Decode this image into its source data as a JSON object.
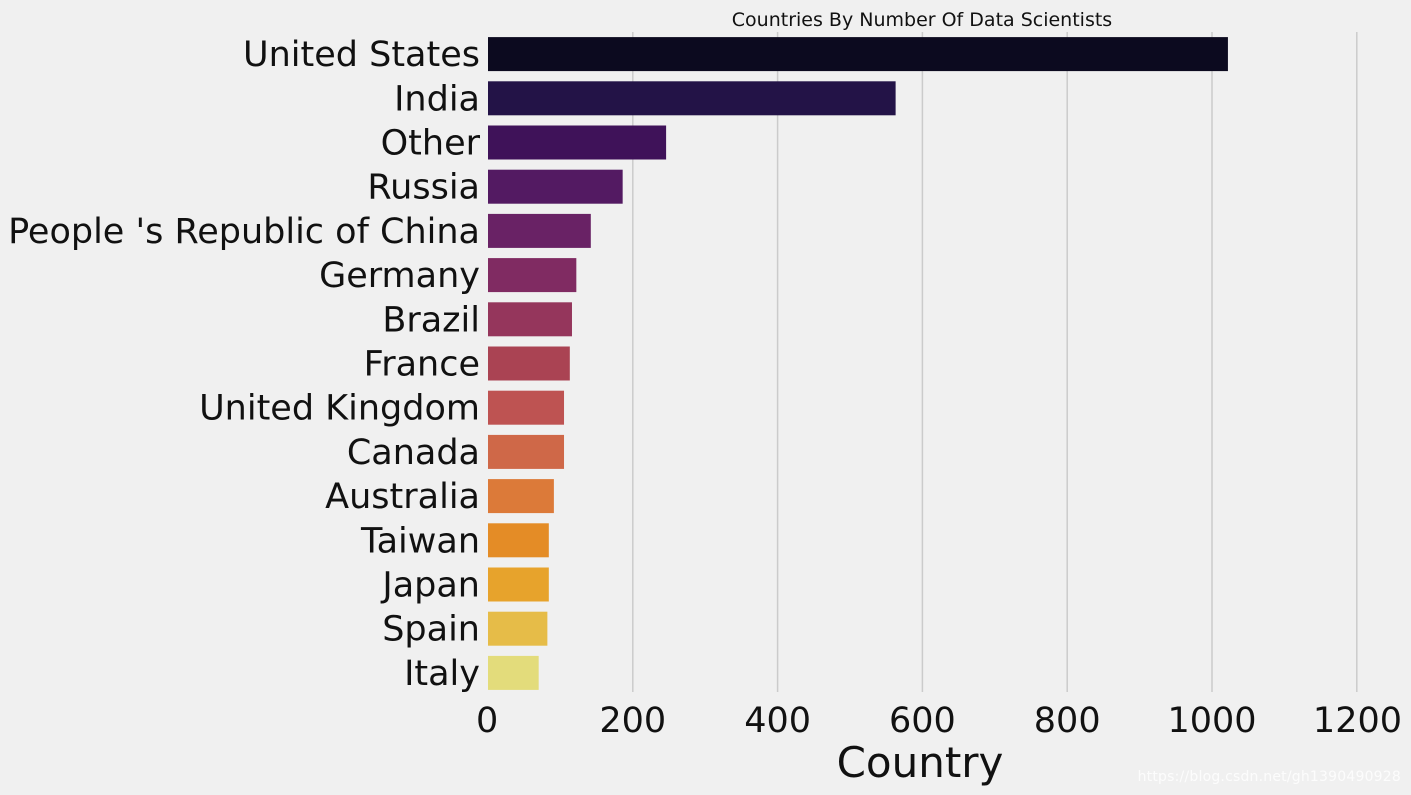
{
  "chart_data": {
    "type": "bar",
    "orientation": "horizontal",
    "title": "Countries By Number Of Data Scientists",
    "xlabel": "Country",
    "ylabel": "",
    "categories": [
      "United States",
      "India",
      "Other",
      "Russia",
      "People 's Republic of China",
      "Germany",
      "Brazil",
      "France",
      "United Kingdom",
      "Canada",
      "Australia",
      "Taiwan",
      "Japan",
      "Spain",
      "Italy"
    ],
    "values": [
      1022,
      563,
      246,
      186,
      142,
      122,
      116,
      113,
      105,
      105,
      91,
      84,
      84,
      82,
      70
    ],
    "colors": [
      "#0c0a1f",
      "#231347",
      "#3f1259",
      "#531a62",
      "#692265",
      "#802b62",
      "#95365c",
      "#aa4353",
      "#be5352",
      "#cf6848",
      "#dc7a39",
      "#e48c26",
      "#e7a32c",
      "#e6bc48",
      "#e3dc7b"
    ],
    "xlim": [
      0,
      1200
    ],
    "xticks": [
      0,
      200,
      400,
      600,
      800,
      1000,
      1200
    ],
    "grid": "vertical",
    "legend": "none"
  },
  "watermark": "https://blog.csdn.net/gh1390490928"
}
